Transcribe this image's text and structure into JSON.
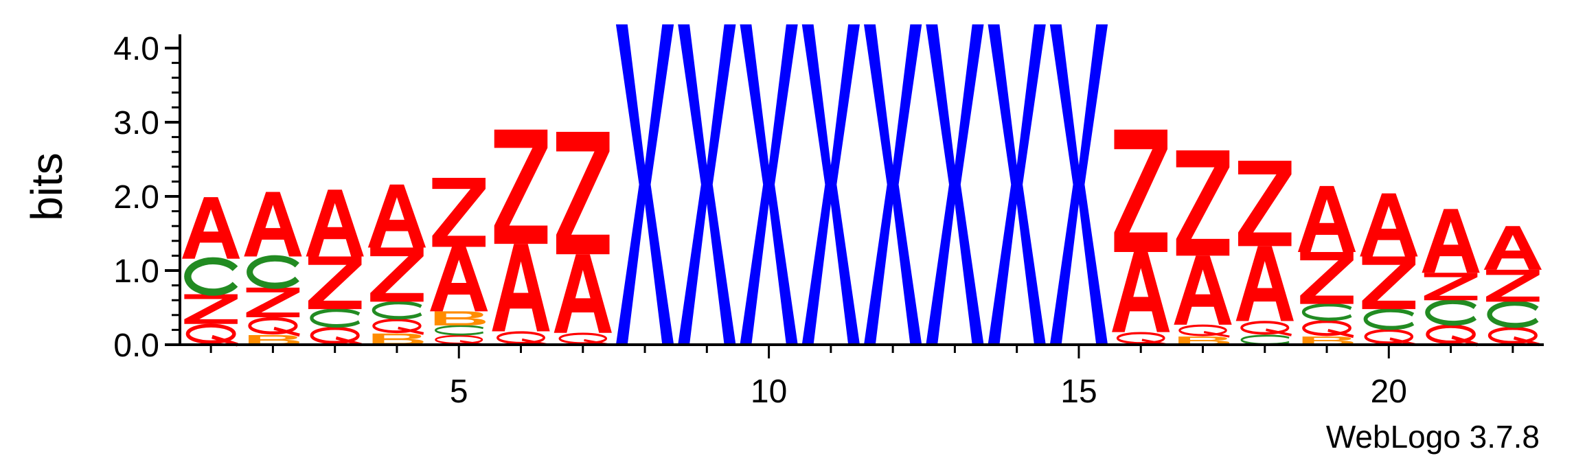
{
  "chart_data": {
    "type": "sequence-logo",
    "ylabel": "bits",
    "ylim": [
      0,
      4.0
    ],
    "y_major_ticks": [
      0.0,
      1.0,
      2.0,
      3.0,
      4.0
    ],
    "y_tick_labels": [
      "0.0",
      "1.0",
      "2.0",
      "3.0",
      "4.0"
    ],
    "x_range": [
      0.5,
      22.5
    ],
    "x_tick_values": [
      5,
      10,
      15,
      20
    ],
    "x_tick_labels": [
      "5",
      "10",
      "15",
      "20"
    ],
    "footer": "WebLogo 3.7.8",
    "colors": {
      "A": "#ff0000",
      "Z": "#ff0000",
      "Q": "#ff0000",
      "C": "#228b22",
      "B": "#ff8c00",
      "X": "#0000ff"
    },
    "positions": [
      {
        "pos": 1,
        "stack": [
          [
            "Q",
            0.28
          ],
          [
            "Z",
            0.4
          ],
          [
            "C",
            0.48
          ],
          [
            "A",
            0.83
          ]
        ]
      },
      {
        "pos": 2,
        "stack": [
          [
            "B",
            0.13
          ],
          [
            "Q",
            0.24
          ],
          [
            "Z",
            0.4
          ],
          [
            "C",
            0.42
          ],
          [
            "A",
            0.87
          ]
        ]
      },
      {
        "pos": 3,
        "stack": [
          [
            "Q",
            0.24
          ],
          [
            "C",
            0.24
          ],
          [
            "Z",
            0.71
          ],
          [
            "A",
            0.9
          ]
        ]
      },
      {
        "pos": 4,
        "stack": [
          [
            "B",
            0.15
          ],
          [
            "Q",
            0.2
          ],
          [
            "C",
            0.23
          ],
          [
            "Z",
            0.73
          ],
          [
            "A",
            0.85
          ]
        ]
      },
      {
        "pos": 5,
        "stack": [
          [
            "Q",
            0.13
          ],
          [
            "C",
            0.13
          ],
          [
            "B",
            0.19
          ],
          [
            "A",
            0.87
          ],
          [
            "Z",
            0.93
          ]
        ]
      },
      {
        "pos": 6,
        "stack": [
          [
            "Q",
            0.18
          ],
          [
            "A",
            1.18
          ],
          [
            "Z",
            1.54
          ]
        ]
      },
      {
        "pos": 7,
        "stack": [
          [
            "Q",
            0.16
          ],
          [
            "A",
            1.06
          ],
          [
            "Z",
            1.65
          ]
        ]
      },
      {
        "pos": 8,
        "stack": [
          [
            "X",
            4.32
          ]
        ]
      },
      {
        "pos": 9,
        "stack": [
          [
            "X",
            4.32
          ]
        ]
      },
      {
        "pos": 10,
        "stack": [
          [
            "X",
            4.32
          ]
        ]
      },
      {
        "pos": 11,
        "stack": [
          [
            "X",
            4.32
          ]
        ]
      },
      {
        "pos": 12,
        "stack": [
          [
            "X",
            4.32
          ]
        ]
      },
      {
        "pos": 13,
        "stack": [
          [
            "X",
            4.32
          ]
        ]
      },
      {
        "pos": 14,
        "stack": [
          [
            "X",
            4.32
          ]
        ]
      },
      {
        "pos": 15,
        "stack": [
          [
            "X",
            4.32
          ]
        ]
      },
      {
        "pos": 16,
        "stack": [
          [
            "Q",
            0.17
          ],
          [
            "A",
            1.08
          ],
          [
            "Z",
            1.65
          ]
        ]
      },
      {
        "pos": 17,
        "stack": [
          [
            "B",
            0.11
          ],
          [
            "Q",
            0.16
          ],
          [
            "A",
            0.93
          ],
          [
            "Z",
            1.42
          ]
        ]
      },
      {
        "pos": 18,
        "stack": [
          [
            "C",
            0.13
          ],
          [
            "Q",
            0.19
          ],
          [
            "A",
            1.01
          ],
          [
            "Z",
            1.15
          ]
        ]
      },
      {
        "pos": 19,
        "stack": [
          [
            "B",
            0.11
          ],
          [
            "Q",
            0.22
          ],
          [
            "C",
            0.22
          ],
          [
            "Z",
            0.7
          ],
          [
            "A",
            0.89
          ]
        ]
      },
      {
        "pos": 20,
        "stack": [
          [
            "Q",
            0.21
          ],
          [
            "C",
            0.27
          ],
          [
            "Z",
            0.71
          ],
          [
            "A",
            0.85
          ]
        ]
      },
      {
        "pos": 21,
        "stack": [
          [
            "Q",
            0.27
          ],
          [
            "C",
            0.33
          ],
          [
            "Z",
            0.37
          ],
          [
            "A",
            0.86
          ]
        ]
      },
      {
        "pos": 22,
        "stack": [
          [
            "Q",
            0.24
          ],
          [
            "C",
            0.34
          ],
          [
            "Z",
            0.43
          ],
          [
            "A",
            0.59
          ]
        ]
      }
    ]
  }
}
